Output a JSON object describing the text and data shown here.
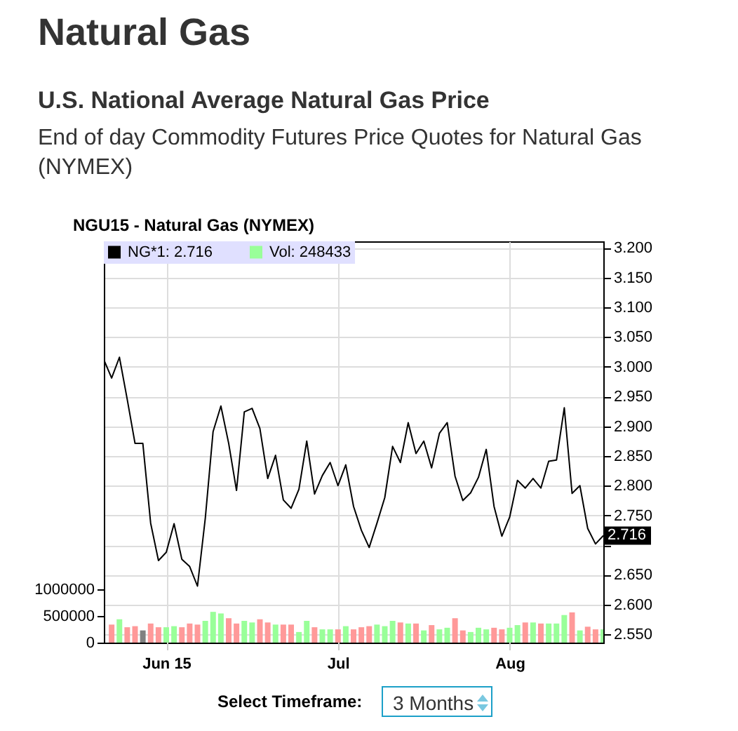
{
  "chart_data": {
    "type": "line",
    "title": "NGU15 - Natural Gas (NYMEX)",
    "annotations": [
      "Natural Gas",
      "U.S. National Average Natural Gas Price",
      "End of day Commodity Futures Price Quotes for Natural Gas (NYMEX)",
      "Select Timeframe:",
      "3 Months",
      "2.716"
    ],
    "categories": [
      null,
      null,
      null,
      null,
      null,
      null,
      null,
      null,
      "Jun 15",
      null,
      null,
      null,
      null,
      null,
      null,
      null,
      null,
      null,
      null,
      null,
      null,
      null,
      null,
      null,
      null,
      null,
      null,
      null,
      null,
      null,
      "Jul",
      null,
      null,
      null,
      null,
      null,
      null,
      null,
      null,
      null,
      null,
      null,
      null,
      null,
      null,
      null,
      null,
      null,
      null,
      null,
      null,
      null,
      "Aug",
      null,
      null,
      null,
      null,
      null,
      null,
      null,
      null,
      null,
      null,
      null,
      null
    ],
    "series": [
      {
        "name": "NG*1: 2.716",
        "axis": "y2",
        "color": "#000000",
        "values": [
          3.012,
          2.981,
          3.016,
          2.945,
          2.871,
          2.871,
          2.737,
          2.674,
          2.688,
          2.736,
          2.676,
          2.664,
          2.631,
          2.745,
          2.891,
          2.934,
          2.871,
          2.792,
          2.924,
          2.93,
          2.896,
          2.812,
          2.851,
          2.776,
          2.762,
          2.794,
          2.875,
          2.786,
          2.817,
          2.839,
          2.8,
          2.835,
          2.765,
          2.725,
          2.696,
          2.737,
          2.78,
          2.866,
          2.839,
          2.906,
          2.854,
          2.875,
          2.83,
          2.888,
          2.906,
          2.816,
          2.775,
          2.788,
          2.814,
          2.861,
          2.765,
          2.715,
          2.747,
          2.809,
          2.796,
          2.812,
          2.796,
          2.841,
          2.843,
          2.931,
          2.787,
          2.8,
          2.728,
          2.702,
          2.716
        ]
      },
      {
        "name": "Vol: 248433",
        "type": "bar",
        "color": "#99ff99",
        "colors": [
          "#ff9999",
          "#ff9999",
          "#99ff99",
          "#ff9999",
          "#ff9999",
          "#808080",
          "#ff9999",
          "#ff9999",
          "#99ff99",
          "#99ff99",
          "#ff9999",
          "#ff9999",
          "#ff9999",
          "#99ff99",
          "#99ff99",
          "#99ff99",
          "#ff9999",
          "#ff9999",
          "#99ff99",
          "#99ff99",
          "#ff9999",
          "#ff9999",
          "#99ff99",
          "#ff9999",
          "#ff9999",
          "#99ff99",
          "#99ff99",
          "#ff9999",
          "#99ff99",
          "#99ff99",
          "#ff9999",
          "#99ff99",
          "#ff9999",
          "#ff9999",
          "#ff9999",
          "#99ff99",
          "#99ff99",
          "#99ff99",
          "#ff9999",
          "#99ff99",
          "#ff9999",
          "#99ff99",
          "#ff9999",
          "#99ff99",
          "#99ff99",
          "#ff9999",
          "#ff9999",
          "#99ff99",
          "#99ff99",
          "#99ff99",
          "#ff9999",
          "#ff9999",
          "#99ff99",
          "#99ff99",
          "#ff9999",
          "#99ff99",
          "#ff9999",
          "#99ff99",
          "#99ff99",
          "#99ff99",
          "#ff9999",
          "#99ff99",
          "#ff9999",
          "#ff9999",
          "#99ff99"
        ],
        "values": [
          null,
          340000,
          440000,
          290000,
          310000,
          230000,
          360000,
          290000,
          290000,
          310000,
          290000,
          360000,
          340000,
          410000,
          580000,
          550000,
          460000,
          360000,
          410000,
          380000,
          440000,
          380000,
          340000,
          340000,
          340000,
          200000,
          410000,
          290000,
          250000,
          250000,
          250000,
          310000,
          250000,
          290000,
          310000,
          340000,
          310000,
          410000,
          380000,
          360000,
          360000,
          230000,
          330000,
          250000,
          280000,
          460000,
          230000,
          200000,
          280000,
          250000,
          280000,
          250000,
          280000,
          330000,
          380000,
          380000,
          360000,
          360000,
          360000,
          520000,
          570000,
          230000,
          300000,
          250000,
          250000
        ]
      }
    ],
    "ylim": [
      0,
      7570000
    ],
    "yticks": [
      0,
      500000,
      1000000
    ],
    "y2lim": [
      2.536,
      3.211
    ],
    "y2ticks": [
      {
        "value": 2.55,
        "label": "2.550"
      },
      {
        "value": 2.6,
        "label": "2.600"
      },
      {
        "value": 2.65,
        "label": "2.650"
      },
      {
        "value": 2.7,
        "label": null
      },
      {
        "value": 2.75,
        "label": "2.750"
      },
      {
        "value": 2.8,
        "label": "2.800"
      },
      {
        "value": 2.85,
        "label": "2.850"
      },
      {
        "value": 2.9,
        "label": "2.900"
      },
      {
        "value": 2.95,
        "label": "2.950"
      },
      {
        "value": 3.0,
        "label": "3.000"
      },
      {
        "value": 3.05,
        "label": "3.050"
      },
      {
        "value": 3.1,
        "label": "3.100"
      },
      {
        "value": 3.15,
        "label": "3.150"
      },
      {
        "value": 3.2,
        "label": "3.200"
      }
    ],
    "grid": true,
    "legend": "top left"
  }
}
